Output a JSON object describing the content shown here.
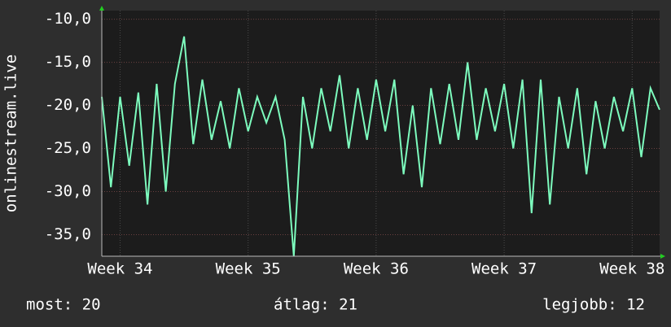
{
  "chart_data": {
    "type": "line",
    "ylabel": "onlinestream.live",
    "series": [
      {
        "name": "onlinestream.live",
        "color": "#7dfcbe",
        "x": [
          0,
          0.5,
          1,
          1.5,
          2,
          2.5,
          3,
          3.5,
          4,
          4.5,
          5,
          5.5,
          6,
          6.5,
          7,
          7.5,
          8,
          8.5,
          9,
          9.5,
          10,
          10.5,
          11,
          11.5,
          12,
          12.5,
          13,
          13.5,
          14,
          14.5,
          15,
          15.5,
          16,
          16.5,
          17,
          17.5,
          18,
          18.5,
          19,
          19.5,
          20,
          20.5,
          21,
          21.5,
          22,
          22.5,
          23,
          23.5,
          24,
          24.5,
          25,
          25.5,
          26,
          26.5,
          27,
          27.5,
          28,
          28.5,
          29,
          29.5,
          30,
          30.5
        ],
        "values": [
          -19,
          -29.5,
          -19,
          -27,
          -18.5,
          -31.5,
          -17.5,
          -30,
          -17.5,
          -12,
          -24.5,
          -17,
          -24,
          -19.5,
          -25,
          -18,
          -23,
          -19,
          -22,
          -19,
          -24,
          -37.5,
          -19,
          -25,
          -18,
          -23,
          -16.5,
          -25,
          -18,
          -24,
          -17,
          -23,
          -17,
          -28,
          -20,
          -29.5,
          -18,
          -24.5,
          -17.5,
          -24,
          -15,
          -24,
          -18,
          -23,
          -17.5,
          -25,
          -17,
          -32.5,
          -17,
          -31.5,
          -19,
          -25,
          -18,
          -28,
          -19.5,
          -25,
          -19,
          -23,
          -18,
          -26,
          -18,
          -20.5
        ]
      }
    ],
    "xlim": [
      0,
      30.5
    ],
    "xticks": [
      {
        "value": 1,
        "label": "Week 34"
      },
      {
        "value": 8,
        "label": "Week 35"
      },
      {
        "value": 15,
        "label": "Week 36"
      },
      {
        "value": 22,
        "label": "Week 37"
      },
      {
        "value": 29,
        "label": "Week 38"
      }
    ],
    "ylim": [
      -37.5,
      -9.0
    ],
    "yticks": [
      {
        "value": -10,
        "label": "-10,0"
      },
      {
        "value": -15,
        "label": "-15,0"
      },
      {
        "value": -20,
        "label": "-20,0"
      },
      {
        "value": -25,
        "label": "-25,0"
      },
      {
        "value": -30,
        "label": "-30,0"
      },
      {
        "value": -35,
        "label": "-35,0"
      }
    ],
    "grid": true,
    "stats": [
      "most: 20",
      "átlag: 21",
      "legjobb: 12"
    ]
  }
}
